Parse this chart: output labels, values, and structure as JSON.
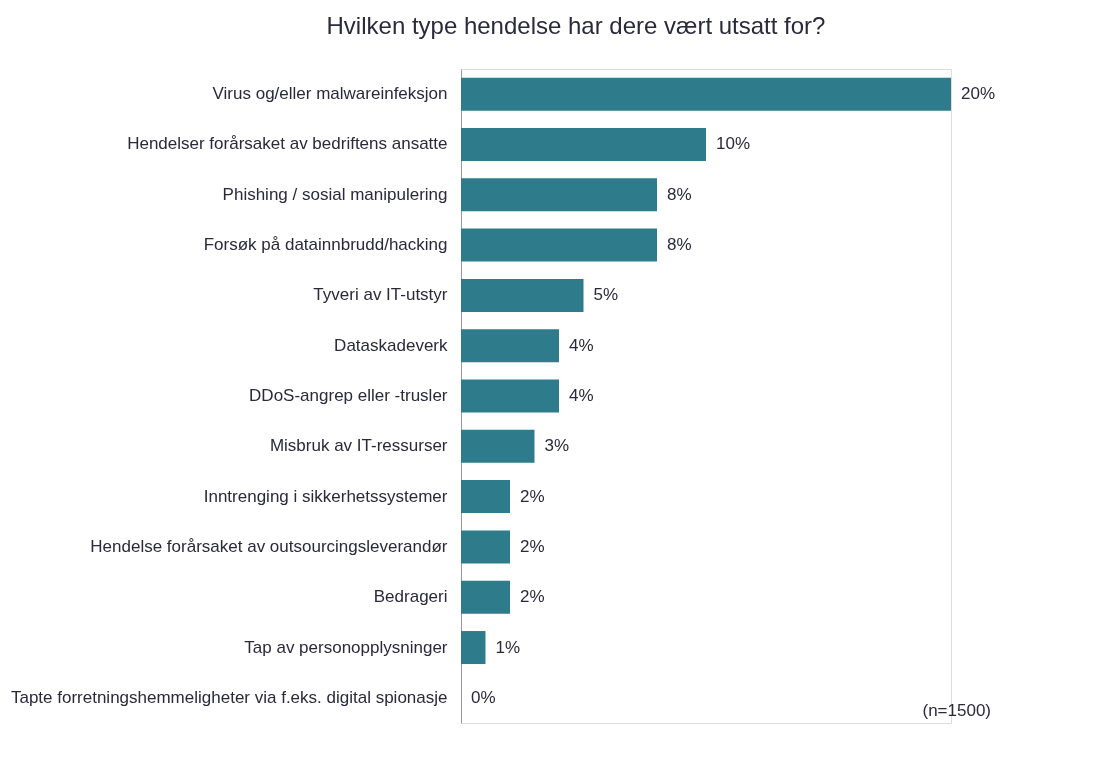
{
  "chart_data": {
    "type": "bar",
    "orientation": "horizontal",
    "title": "Hvilken type hendelse har dere vært utsatt for?",
    "categories": [
      "Virus og/eller malwareinfeksjon",
      "Hendelser forårsaket av bedriftens ansatte",
      "Phishing / sosial manipulering",
      "Forsøk på datainnbrudd/hacking",
      "Tyveri av IT-utstyr",
      "Dataskadeverk",
      "DDoS-angrep eller -trusler",
      "Misbruk av IT-ressurser",
      "Inntrenging i sikkerhetssystemer",
      "Hendelse forårsaket av outsourcingsleverandør",
      "Bedrageri",
      "Tap av personopplysninger",
      "Tapte forretningshemmeligheter via f.eks. digital spionasje"
    ],
    "values": [
      20,
      10,
      8,
      8,
      5,
      4,
      4,
      3,
      2,
      2,
      2,
      1,
      0
    ],
    "value_labels": [
      "20%",
      "10%",
      "8%",
      "8%",
      "5%",
      "4%",
      "4%",
      "3%",
      "2%",
      "2%",
      "2%",
      "1%",
      "0%"
    ],
    "color": "#2e7b8c",
    "annotations": [
      "(n=1500)"
    ],
    "grid": false
  }
}
